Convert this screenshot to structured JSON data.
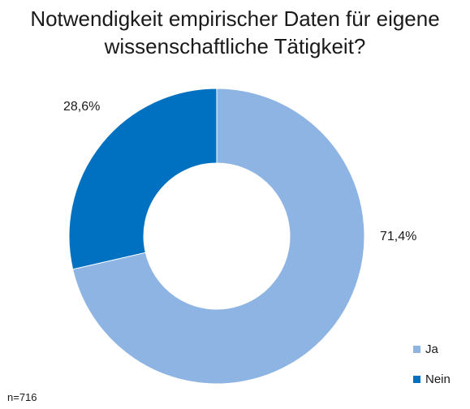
{
  "chart_data": {
    "type": "pie",
    "donut": true,
    "title_lines": [
      "Notwendigkeit empirischer Daten für eigene",
      "wissenschaftliche Tätigkeit?"
    ],
    "slices": [
      {
        "name": "Ja",
        "value": 71.4,
        "label": "71,4%",
        "color": "#8eb4e3"
      },
      {
        "name": "Nein",
        "value": 28.6,
        "label": "28,6%",
        "color": "#0070c0"
      }
    ],
    "legend": {
      "position": "bottom-right",
      "entries": [
        {
          "name": "Ja",
          "color": "#8eb4e3"
        },
        {
          "name": "Nein",
          "color": "#0070c0"
        }
      ]
    },
    "note": "n=716"
  }
}
